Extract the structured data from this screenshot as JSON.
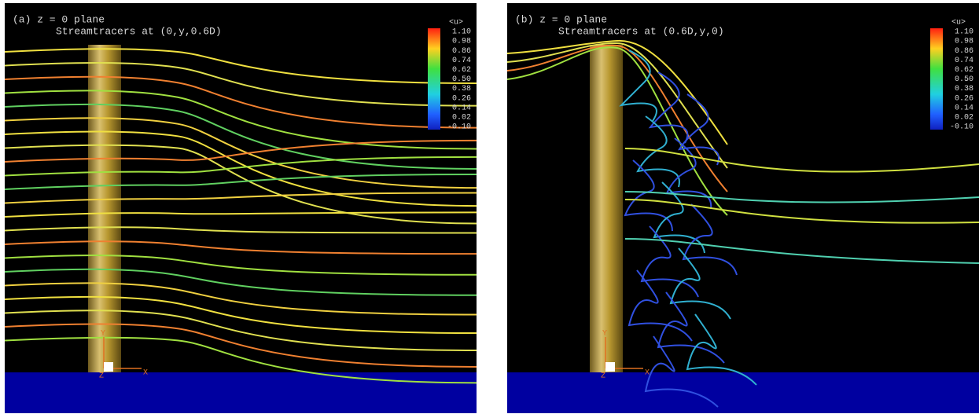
{
  "panels": [
    {
      "label": "(a) z = 0 plane",
      "subtitle": "Streamtracers at (0,y,0.6D)",
      "colorbar": {
        "title": "<u>",
        "labels": [
          "1.10",
          "0.98",
          "0.86",
          "0.74",
          "0.62",
          "0.50",
          "0.38",
          "0.26",
          "0.14",
          "0.02",
          "-0.10"
        ]
      },
      "axes": {
        "y": "Y",
        "x": "X",
        "z": "Z"
      }
    },
    {
      "label": "(b) z = 0 plane",
      "subtitle": "Streamtracers at (0.6D,y,0)",
      "colorbar": {
        "title": "<u>",
        "labels": [
          "1.10",
          "0.98",
          "0.86",
          "0.74",
          "0.62",
          "0.50",
          "0.38",
          "0.26",
          "0.14",
          "0.02",
          "-0.10"
        ]
      },
      "axes": {
        "y": "Y",
        "x": "X",
        "z": "Z"
      }
    }
  ]
}
